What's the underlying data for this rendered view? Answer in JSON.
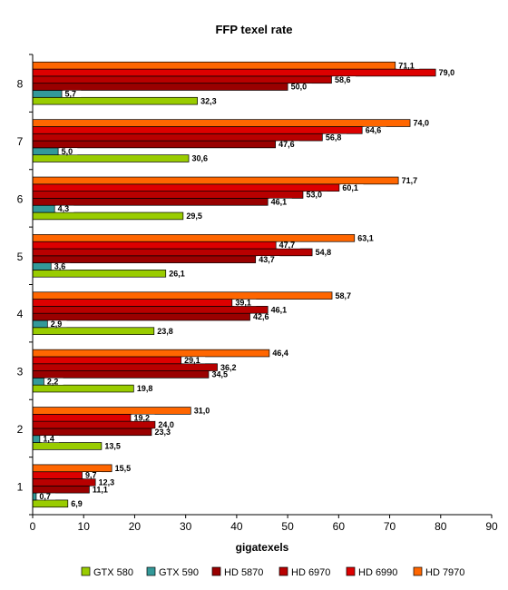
{
  "chart_data": {
    "type": "bar",
    "orientation": "horizontal",
    "title": "FFP texel rate",
    "xlabel": "gigatexels",
    "ylabel": "",
    "xlim": [
      0,
      90
    ],
    "x_ticks": [
      0,
      10,
      20,
      30,
      40,
      50,
      60,
      70,
      80,
      90
    ],
    "categories": [
      "1",
      "2",
      "3",
      "4",
      "5",
      "6",
      "7",
      "8"
    ],
    "grid": false,
    "legend_position": "bottom",
    "series": [
      {
        "name": "GTX 580",
        "color": "#99CC00",
        "values": [
          6.9,
          13.5,
          19.8,
          23.8,
          26.1,
          29.5,
          30.6,
          32.3
        ],
        "labels": [
          "6,9",
          "13,5",
          "19,8",
          "23,8",
          "26,1",
          "29,5",
          "30,6",
          "32,3"
        ]
      },
      {
        "name": "GTX 590",
        "color": "#339999",
        "values": [
          0.7,
          1.4,
          2.2,
          2.9,
          3.6,
          4.3,
          5.0,
          5.7
        ],
        "labels": [
          "0,7",
          "1,4",
          "2,2",
          "2,9",
          "3,6",
          "4,3",
          "5,0",
          "5,7"
        ]
      },
      {
        "name": "HD 5870",
        "color": "#990000",
        "values": [
          11.1,
          23.3,
          34.5,
          42.6,
          43.7,
          46.1,
          47.6,
          50.0
        ],
        "labels": [
          "11,1",
          "23,3",
          "34,5",
          "42,6",
          "43,7",
          "46,1",
          "47,6",
          "50,0"
        ]
      },
      {
        "name": "HD 6970",
        "color": "#B80000",
        "values": [
          12.3,
          24.0,
          36.2,
          46.1,
          54.8,
          53.0,
          56.8,
          58.6
        ],
        "labels": [
          "12,3",
          "24,0",
          "36,2",
          "46,1",
          "54,8",
          "53,0",
          "56,8",
          "58,6"
        ]
      },
      {
        "name": "HD 6990",
        "color": "#DD0000",
        "values": [
          9.7,
          19.2,
          29.1,
          39.1,
          47.7,
          60.1,
          64.6,
          79.0
        ],
        "labels": [
          "9,7",
          "19,2",
          "29,1",
          "39,1",
          "47,7",
          "60,1",
          "64,6",
          "79,0"
        ]
      },
      {
        "name": "HD 7970",
        "color": "#FF6600",
        "values": [
          15.5,
          31.0,
          46.4,
          58.7,
          63.1,
          71.7,
          74.0,
          71.1
        ],
        "labels": [
          "15,5",
          "31,0",
          "46,4",
          "58,7",
          "63,1",
          "71,7",
          "74,0",
          "71,1"
        ]
      }
    ]
  }
}
